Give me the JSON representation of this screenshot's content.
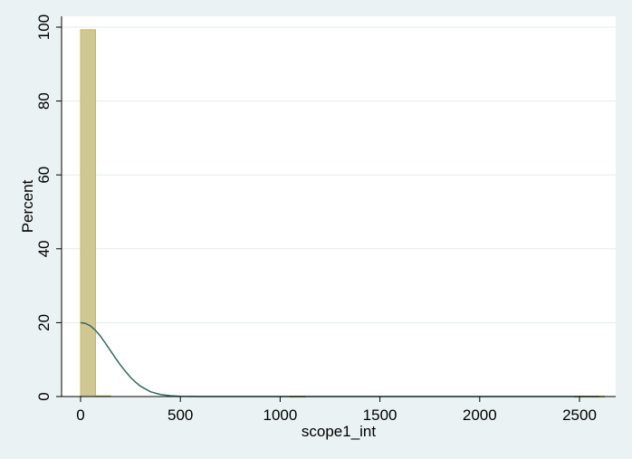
{
  "chart_data": {
    "type": "bar",
    "xlabel": "scope1_int",
    "ylabel": "Percent",
    "xlim": [
      -100,
      2650
    ],
    "ylim": [
      0,
      100
    ],
    "xticks": [
      0,
      500,
      1000,
      1500,
      2000,
      2500
    ],
    "yticks": [
      0,
      20,
      40,
      60,
      80,
      100
    ],
    "grid": true,
    "legend": "none",
    "bars": [
      {
        "x0": 0,
        "x1": 75,
        "value": 99.3
      },
      {
        "x0": 75,
        "x1": 150,
        "value": 0.2
      },
      {
        "x0": 1050,
        "x1": 1125,
        "value": 0.1
      },
      {
        "x0": 2475,
        "x1": 2550,
        "value": 0.1
      },
      {
        "x0": 2550,
        "x1": 2625,
        "value": 0.1
      }
    ],
    "density_curve": {
      "x": [
        0,
        25,
        50,
        75,
        100,
        125,
        150,
        175,
        200,
        225,
        250,
        275,
        300,
        350,
        400,
        450,
        500,
        600,
        800,
        1200,
        1800,
        2600
      ],
      "y": [
        20,
        19.8,
        19.1,
        17.9,
        16.3,
        14.4,
        12.4,
        10.4,
        8.5,
        6.8,
        5.2,
        3.9,
        2.8,
        1.3,
        0.55,
        0.2,
        0.07,
        0.01,
        0,
        0,
        0,
        0
      ]
    },
    "colors": {
      "plot_background": "#ffffff",
      "outer_background": "#eaf2f3",
      "bar_fill": "#d1c792",
      "bar_stroke": "#c4b46b",
      "curve": "#2f6b5e",
      "grid": "#e6ecec"
    }
  }
}
